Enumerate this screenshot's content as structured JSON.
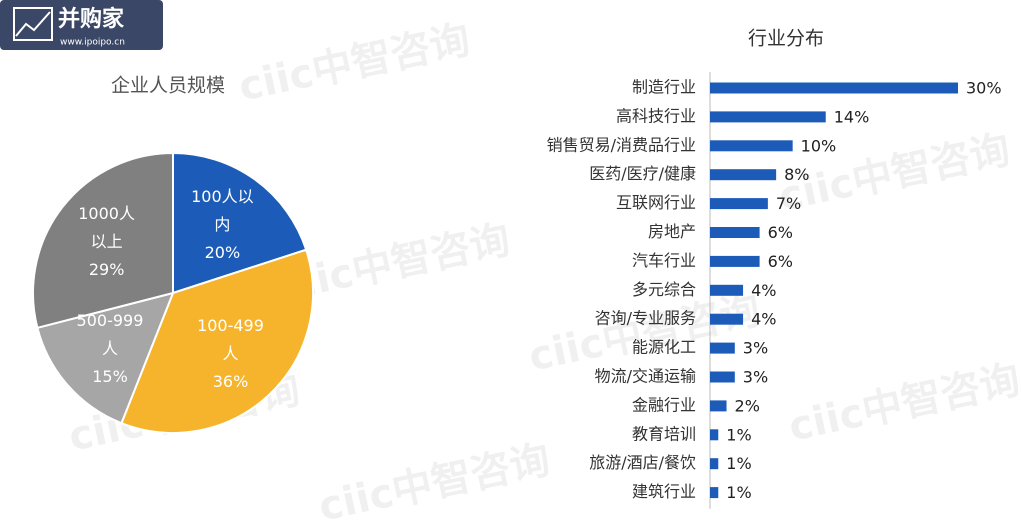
{
  "logo": {
    "name": "并购家",
    "url": "www.ipoipo.cn"
  },
  "watermark": "ciic中智咨询",
  "chart_data": [
    {
      "type": "pie",
      "title": "企业人员规模",
      "categories": [
        "100人以内",
        "100-499人",
        "500-999人",
        "1000人以上"
      ],
      "values": [
        20,
        36,
        15,
        29
      ],
      "value_labels": [
        "20%",
        "36%",
        "15%",
        "29%"
      ],
      "colors": [
        "#1c5cb8",
        "#f6b42c",
        "#a6a6a6",
        "#808080"
      ]
    },
    {
      "type": "hbar",
      "title": "行业分布",
      "categories": [
        "制造行业",
        "高科技行业",
        "销售贸易/消费品行业",
        "医药/医疗/健康",
        "互联网行业",
        "房地产",
        "汽车行业",
        "多元综合",
        "咨询/专业服务",
        "能源化工",
        "物流/交通运输",
        "金融行业",
        "教育培训",
        "旅游/酒店/餐饮",
        "建筑行业"
      ],
      "values": [
        30,
        14,
        10,
        8,
        7,
        6,
        6,
        4,
        4,
        3,
        3,
        2,
        1,
        1,
        1
      ],
      "value_labels": [
        "30%",
        "14%",
        "10%",
        "8%",
        "7%",
        "6%",
        "6%",
        "4%",
        "4%",
        "3%",
        "3%",
        "2%",
        "1%",
        "1%",
        "1%"
      ],
      "color": "#1c5cb8",
      "xlim": [
        0,
        30
      ]
    }
  ]
}
